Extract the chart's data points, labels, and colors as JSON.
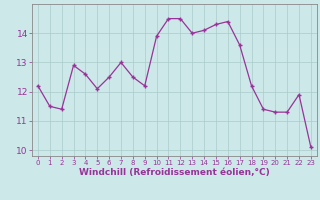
{
  "x": [
    0,
    1,
    2,
    3,
    4,
    5,
    6,
    7,
    8,
    9,
    10,
    11,
    12,
    13,
    14,
    15,
    16,
    17,
    18,
    19,
    20,
    21,
    22,
    23
  ],
  "y": [
    12.2,
    11.5,
    11.4,
    12.9,
    12.6,
    12.1,
    12.5,
    13.0,
    12.5,
    12.2,
    13.9,
    14.5,
    14.5,
    14.0,
    14.1,
    14.3,
    14.4,
    13.6,
    12.2,
    11.4,
    11.3,
    11.3,
    11.9,
    10.1
  ],
  "line_color": "#993399",
  "marker": "+",
  "marker_size": 4,
  "bg_color": "#cce8e8",
  "grid_color": "#aacccc",
  "xlabel": "Windchill (Refroidissement éolien,°C)",
  "xlabel_color": "#993399",
  "tick_color": "#993399",
  "ylim": [
    9.8,
    15.0
  ],
  "xlim": [
    -0.5,
    23.5
  ],
  "yticks": [
    10,
    11,
    12,
    13,
    14
  ],
  "xticks": [
    0,
    1,
    2,
    3,
    4,
    5,
    6,
    7,
    8,
    9,
    10,
    11,
    12,
    13,
    14,
    15,
    16,
    17,
    18,
    19,
    20,
    21,
    22,
    23
  ]
}
